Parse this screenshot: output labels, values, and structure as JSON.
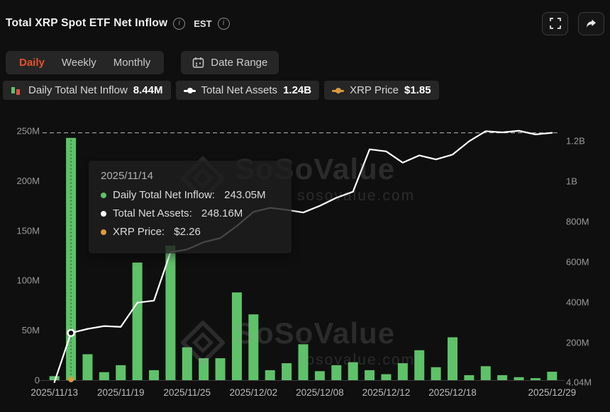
{
  "colors": {
    "background": "#0f0f0f",
    "panel": "#262626",
    "accent": "#e4512a",
    "positive": "#5ec269",
    "negative": "#dd5144",
    "net_assets_line": "#ffffff",
    "price_line": "#d99a3d",
    "axis_text": "#9a9a9a",
    "x_axis_text": "#bdbdbd",
    "reference_dash": "#d8d8d8"
  },
  "header": {
    "title": "Total XRP Spot ETF Net Inflow",
    "timezone": "EST"
  },
  "toolbar": {
    "tabs": [
      {
        "label": "Daily",
        "active": true
      },
      {
        "label": "Weekly",
        "active": false
      },
      {
        "label": "Monthly",
        "active": false
      }
    ],
    "date_range_label": "Date Range"
  },
  "legend": {
    "items": [
      {
        "name": "Daily Total Net Inflow",
        "value": "8.44M",
        "color": "#5ec269",
        "icon": "bar"
      },
      {
        "name": "Total Net Assets",
        "value": "1.24B",
        "color": "#ffffff",
        "icon": "line"
      },
      {
        "name": "XRP Price",
        "value": "$1.85",
        "color": "#d99a3d",
        "icon": "line"
      }
    ]
  },
  "tooltip": {
    "date": "2025/11/14",
    "rows": [
      {
        "label": "Daily Total Net Inflow",
        "value": "243.05M",
        "color": "#5ec269"
      },
      {
        "label": "Total Net Assets",
        "value": "248.16M",
        "color": "#ffffff"
      },
      {
        "label": "XRP Price",
        "value": "$2.26",
        "color": "#d99a3d"
      }
    ]
  },
  "watermark": {
    "brand": "SoSoValue",
    "domain": "sosovalue.com"
  },
  "chart_data": {
    "type": "bar+line",
    "title": "Total XRP Spot ETF Net Inflow",
    "x": [
      "2025/11/13",
      "2025/11/14",
      "2025/11/17",
      "2025/11/18",
      "2025/11/19",
      "2025/11/20",
      "2025/11/21",
      "2025/11/24",
      "2025/11/25",
      "2025/11/26",
      "2025/11/28",
      "2025/12/01",
      "2025/12/02",
      "2025/12/03",
      "2025/12/04",
      "2025/12/05",
      "2025/12/08",
      "2025/12/09",
      "2025/12/10",
      "2025/12/11",
      "2025/12/12",
      "2025/12/15",
      "2025/12/16",
      "2025/12/17",
      "2025/12/18",
      "2025/12/19",
      "2025/12/22",
      "2025/12/23",
      "2025/12/24",
      "2025/12/26",
      "2025/12/29"
    ],
    "series": [
      {
        "name": "Daily Total Net Inflow",
        "type": "bar",
        "axis": "left",
        "unit": "M",
        "color": "#5ec269",
        "values": [
          4,
          243.05,
          26,
          8,
          15,
          118,
          10,
          135,
          33,
          22,
          22,
          88,
          66,
          10,
          17,
          36,
          9,
          15,
          18,
          10,
          6,
          17,
          30,
          13,
          43,
          5,
          14,
          5,
          3,
          2,
          8.44
        ]
      },
      {
        "name": "Total Net Assets",
        "type": "line",
        "axis": "right",
        "unit": "M",
        "color": "#ffffff",
        "values": [
          4.04,
          248.16,
          268,
          282,
          278,
          398,
          408,
          648,
          662,
          698,
          718,
          778,
          848,
          868,
          858,
          845,
          878,
          918,
          948,
          1158,
          1148,
          1092,
          1128,
          1108,
          1132,
          1198,
          1248,
          1242,
          1250,
          1232,
          1240
        ]
      }
    ],
    "price_series": {
      "name": "XRP Price",
      "hover_value": "$2.26",
      "latest_value": "$1.85",
      "color": "#d99a3d"
    },
    "left_axis": {
      "ticks": [
        {
          "v": 0,
          "label": "0"
        },
        {
          "v": 50,
          "label": "50M"
        },
        {
          "v": 100,
          "label": "100M"
        },
        {
          "v": 150,
          "label": "150M"
        },
        {
          "v": 200,
          "label": "200M"
        },
        {
          "v": 250,
          "label": "250M"
        }
      ],
      "range": [
        0,
        250
      ],
      "unit": "M"
    },
    "right_axis": {
      "ticks": [
        {
          "v": 4.04,
          "label": "4.04M"
        },
        {
          "v": 200,
          "label": "200M"
        },
        {
          "v": 400,
          "label": "400M"
        },
        {
          "v": 600,
          "label": "600M"
        },
        {
          "v": 800,
          "label": "800M"
        },
        {
          "v": 1000,
          "label": "1B"
        },
        {
          "v": 1200,
          "label": "1.2B"
        }
      ],
      "unit": "M"
    },
    "x_ticks": [
      {
        "i": 0,
        "label": "2025/11/13"
      },
      {
        "i": 4,
        "label": "2025/11/19"
      },
      {
        "i": 8,
        "label": "2025/11/25"
      },
      {
        "i": 12,
        "label": "2025/12/02"
      },
      {
        "i": 16,
        "label": "2025/12/08"
      },
      {
        "i": 20,
        "label": "2025/12/12"
      },
      {
        "i": 24,
        "label": "2025/12/18"
      },
      {
        "i": 30,
        "label": "2025/12/29"
      }
    ],
    "reference_line_value": 1240,
    "hover": {
      "index": 1,
      "net_assets_value": 248.16
    },
    "grid": "off",
    "legend_position": "top"
  }
}
